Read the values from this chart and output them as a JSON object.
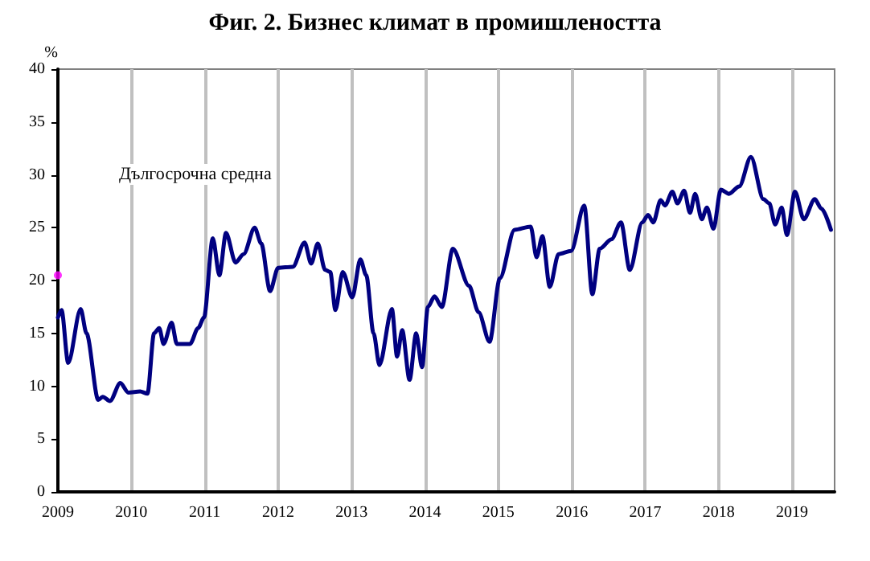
{
  "chart_data": {
    "type": "line",
    "title": "Фиг. 2. Бизнес климат в промишлеността",
    "ylabel": "%",
    "annotations": [
      "Дългосрочна средна"
    ],
    "xlim": [
      2009,
      2019.58
    ],
    "ylim": [
      0,
      40
    ],
    "xticks": [
      2009,
      2010,
      2011,
      2012,
      2013,
      2014,
      2015,
      2016,
      2017,
      2018,
      2019
    ],
    "yticks": [
      0,
      5,
      10,
      15,
      20,
      25,
      30,
      35,
      40
    ],
    "grid": "x",
    "series": [
      {
        "color": "#000080",
        "x": [
          2009.0,
          2009.05,
          2009.14,
          2009.31,
          2009.39,
          2009.55,
          2009.61,
          2009.71,
          2009.85,
          2009.96,
          2010.12,
          2010.22,
          2010.31,
          2010.38,
          2010.44,
          2010.55,
          2010.62,
          2010.8,
          2010.91,
          2010.99,
          2011.11,
          2011.2,
          2011.29,
          2011.42,
          2011.53,
          2011.68,
          2011.77,
          2011.89,
          2012.0,
          2012.2,
          2012.36,
          2012.45,
          2012.54,
          2012.64,
          2012.71,
          2012.78,
          2012.88,
          2013.01,
          2013.12,
          2013.2,
          2013.3,
          2013.38,
          2013.55,
          2013.62,
          2013.69,
          2013.79,
          2013.88,
          2013.96,
          2014.04,
          2014.13,
          2014.23,
          2014.38,
          2014.6,
          2014.73,
          2014.88,
          2015.02,
          2015.22,
          2015.44,
          2015.52,
          2015.6,
          2015.7,
          2015.82,
          2015.99,
          2016.17,
          2016.28,
          2016.38,
          2016.54,
          2016.67,
          2016.79,
          2016.96,
          2017.04,
          2017.11,
          2017.21,
          2017.27,
          2017.37,
          2017.44,
          2017.53,
          2017.61,
          2017.68,
          2017.77,
          2017.84,
          2017.93,
          2018.03,
          2018.14,
          2018.28,
          2018.44,
          2018.61,
          2018.69,
          2018.77,
          2018.86,
          2018.93,
          2019.04,
          2019.16,
          2019.31,
          2019.4,
          2019.53
        ],
        "values": [
          16.5,
          17.2,
          12.2,
          17.3,
          15,
          8.7,
          9,
          8.6,
          10.3,
          9.4,
          9.5,
          9.3,
          15,
          15.5,
          14,
          16,
          14,
          14,
          15.5,
          16.5,
          24,
          20.5,
          24.5,
          21.7,
          22.5,
          25,
          23.5,
          19,
          21.2,
          21.3,
          23.6,
          21.6,
          23.5,
          21,
          20.8,
          17.2,
          20.8,
          18.4,
          22,
          20.5,
          15,
          12,
          17.3,
          12.8,
          15.3,
          10.6,
          15,
          11.8,
          17.5,
          18.5,
          17.5,
          23,
          19.5,
          17,
          14.2,
          20.2,
          24.8,
          25.1,
          22.2,
          24.2,
          19.4,
          22.5,
          22.8,
          27.1,
          18.7,
          23,
          23.9,
          25.5,
          21,
          25.5,
          26.2,
          25.5,
          27.6,
          27.1,
          28.4,
          27.3,
          28.5,
          26.4,
          28.2,
          25.8,
          26.9,
          24.9,
          28.6,
          28.2,
          28.9,
          31.7,
          27.7,
          27.3,
          25.3,
          26.9,
          24.3,
          28.4,
          25.8,
          27.7,
          26.8,
          24.8
        ]
      },
      {
        "type": "scatter",
        "color": "#ff00ff",
        "x": [
          2009
        ],
        "values": [
          20.5
        ]
      }
    ]
  }
}
